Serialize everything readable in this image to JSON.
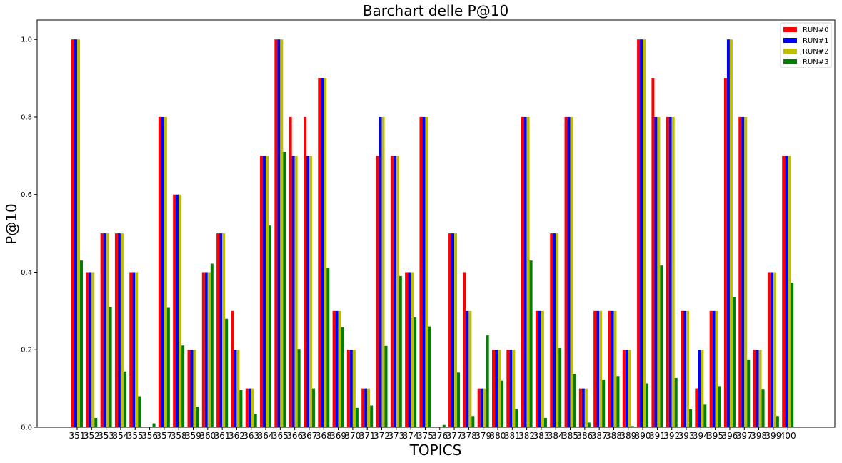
{
  "chart_data": {
    "type": "bar",
    "title": "Barchart delle P@10",
    "xlabel": "TOPICS",
    "ylabel": "P@10",
    "ylim": [
      0,
      1.05
    ],
    "yticks": [
      "0.0",
      "0.2",
      "0.4",
      "0.6",
      "0.8",
      "1.0"
    ],
    "legend_position": "top-right",
    "categories": [
      "351",
      "352",
      "353",
      "354",
      "355",
      "356",
      "357",
      "358",
      "359",
      "360",
      "361",
      "362",
      "363",
      "364",
      "365",
      "366",
      "367",
      "368",
      "369",
      "370",
      "371",
      "372",
      "373",
      "374",
      "375",
      "376",
      "377",
      "378",
      "379",
      "380",
      "381",
      "382",
      "383",
      "384",
      "385",
      "386",
      "387",
      "388",
      "389",
      "390",
      "391",
      "392",
      "393",
      "394",
      "395",
      "396",
      "397",
      "398",
      "399",
      "400"
    ],
    "series": [
      {
        "name": "RUN#0",
        "color": "#ff0000",
        "values": [
          1.0,
          0.4,
          0.5,
          0.5,
          0.4,
          0.0,
          0.8,
          0.6,
          0.2,
          0.4,
          0.5,
          0.3,
          0.1,
          0.7,
          1.0,
          0.8,
          0.8,
          0.9,
          0.3,
          0.2,
          0.1,
          0.7,
          0.7,
          0.4,
          0.8,
          0.0,
          0.5,
          0.4,
          0.1,
          0.2,
          0.2,
          0.8,
          0.3,
          0.5,
          0.8,
          0.1,
          0.3,
          0.3,
          0.2,
          1.0,
          0.9,
          0.8,
          0.3,
          0.1,
          0.3,
          0.9,
          0.8,
          0.2,
          0.4,
          0.7
        ]
      },
      {
        "name": "RUN#1",
        "color": "#0000ff",
        "values": [
          1.0,
          0.4,
          0.5,
          0.5,
          0.4,
          0.0,
          0.8,
          0.6,
          0.2,
          0.4,
          0.5,
          0.2,
          0.1,
          0.7,
          1.0,
          0.7,
          0.7,
          0.9,
          0.3,
          0.2,
          0.1,
          0.8,
          0.7,
          0.4,
          0.8,
          0.0,
          0.5,
          0.3,
          0.1,
          0.2,
          0.2,
          0.8,
          0.3,
          0.5,
          0.8,
          0.1,
          0.3,
          0.3,
          0.2,
          1.0,
          0.8,
          0.8,
          0.3,
          0.2,
          0.3,
          1.0,
          0.8,
          0.2,
          0.4,
          0.7
        ]
      },
      {
        "name": "RUN#2",
        "color": "#bfbf00",
        "values": [
          1.0,
          0.4,
          0.5,
          0.5,
          0.4,
          0.0,
          0.8,
          0.6,
          0.2,
          0.4,
          0.5,
          0.2,
          0.1,
          0.7,
          1.0,
          0.7,
          0.7,
          0.9,
          0.3,
          0.2,
          0.1,
          0.8,
          0.7,
          0.4,
          0.8,
          0.0,
          0.5,
          0.3,
          0.1,
          0.2,
          0.2,
          0.8,
          0.3,
          0.5,
          0.8,
          0.1,
          0.3,
          0.3,
          0.2,
          1.0,
          0.8,
          0.8,
          0.3,
          0.2,
          0.3,
          1.0,
          0.8,
          0.2,
          0.4,
          0.7
        ]
      },
      {
        "name": "RUN#3",
        "color": "#008000",
        "values": [
          0.43,
          0.024,
          0.31,
          0.144,
          0.08,
          0.01,
          0.308,
          0.211,
          0.053,
          0.422,
          0.28,
          0.096,
          0.034,
          0.52,
          0.71,
          0.202,
          0.1,
          0.41,
          0.258,
          0.05,
          0.056,
          0.21,
          0.39,
          0.283,
          0.26,
          0.006,
          0.141,
          0.029,
          0.237,
          0.12,
          0.047,
          0.43,
          0.024,
          0.204,
          0.138,
          0.012,
          0.123,
          0.132,
          0.003,
          0.113,
          0.417,
          0.127,
          0.046,
          0.06,
          0.106,
          0.336,
          0.175,
          0.099,
          0.029,
          0.373
        ]
      }
    ]
  }
}
